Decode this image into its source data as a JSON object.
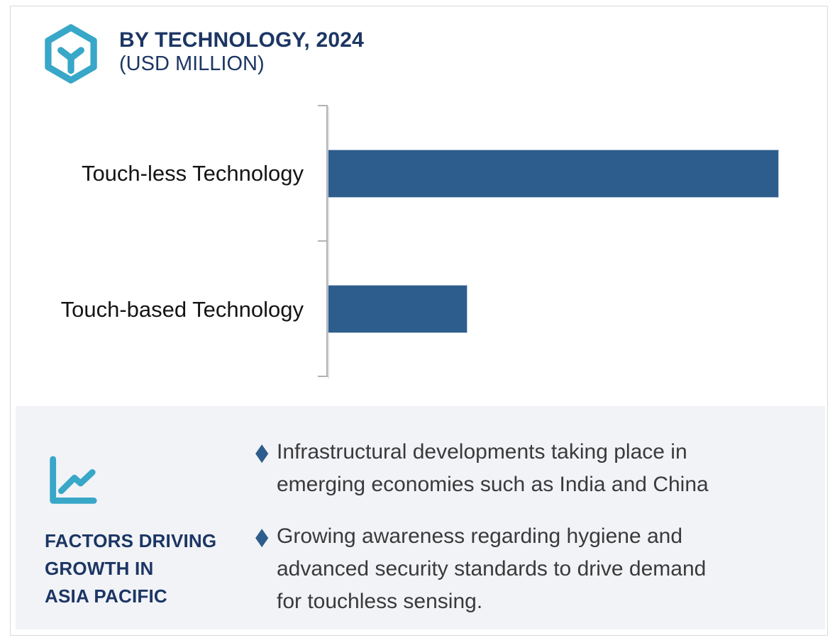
{
  "header": {
    "title": "BY TECHNOLOGY, 2024",
    "subtitle": "(USD MILLION)"
  },
  "chart_data": {
    "type": "bar",
    "orientation": "horizontal",
    "title": "BY TECHNOLOGY, 2024 (USD MILLION)",
    "categories": [
      "Touch-less Technology",
      "Touch-based Technology"
    ],
    "values": [
      100,
      31
    ],
    "value_axis_labeled": false,
    "value_note": "axis has no numeric tick labels; values are relative bar lengths (% of longest bar)",
    "xlim": [
      0,
      107
    ],
    "grid": false,
    "legend": "none",
    "bar_color": "#2d5d8c",
    "axis_color": "#b2b2b4"
  },
  "factors_panel": {
    "heading_lines": [
      "FACTORS DRIVING",
      "GROWTH IN",
      "ASIA PACIFIC"
    ],
    "heading_text": "FACTORS DRIVING GROWTH IN ASIA PACIFIC",
    "bullet_marker": "diamond",
    "bullets": [
      {
        "text": "Infrastructural developments taking place in emerging economies such as India and China",
        "lines": [
          "Infrastructural developments taking place in",
          "emerging economies such as India and China"
        ]
      },
      {
        "text": "Growing awareness regarding hygiene and advanced security standards to drive demand for touchless sensing.",
        "lines": [
          "Growing awareness regarding hygiene and",
          "advanced security standards to drive demand",
          "for touchless sensing."
        ]
      }
    ],
    "colors": {
      "panel_bg": "#f2f3f7",
      "heading": "#1c3664",
      "text": "#3a3a3a",
      "accent_teal": "#38a7c8",
      "bullet_diamond": "#2d5d8c"
    }
  },
  "glyphs": {
    "diamond": "◆"
  }
}
